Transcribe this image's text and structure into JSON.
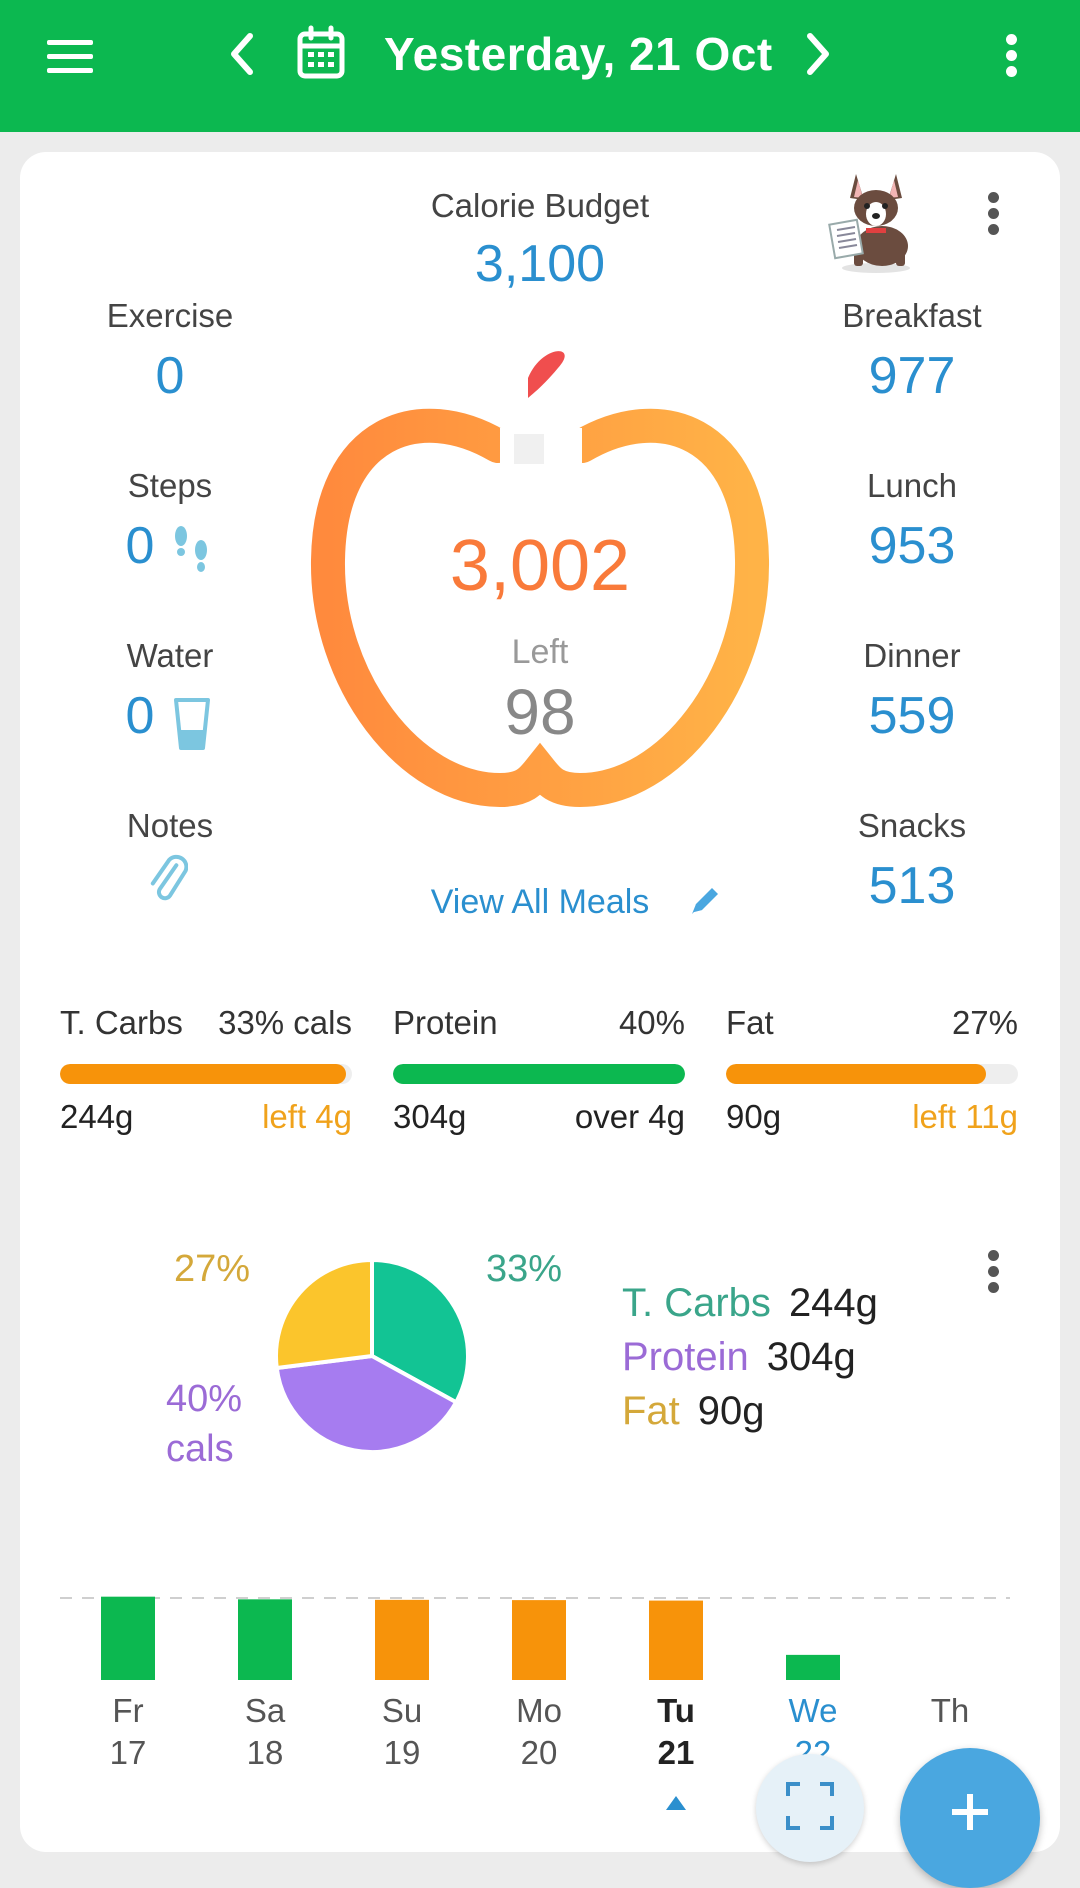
{
  "header": {
    "date_title": "Yesterday, 21 Oct",
    "menu_icon": "hamburger-menu-icon",
    "prev_icon": "chevron-left-icon",
    "next_icon": "chevron-right-icon",
    "calendar_icon": "calendar-icon",
    "more_icon": "more-vertical-icon",
    "bar_color": "#0cb850"
  },
  "summary": {
    "budget_label": "Calorie Budget",
    "budget_value": "3,100",
    "eaten_value": "3,002",
    "left_label": "Left",
    "left_value": "98",
    "view_all_label": "View All Meals",
    "left_stats": [
      {
        "label": "Exercise",
        "value": "0"
      },
      {
        "label": "Steps",
        "value": "0"
      },
      {
        "label": "Water",
        "value": "0"
      },
      {
        "label": "Notes",
        "value": ""
      }
    ],
    "meals": [
      {
        "label": "Breakfast",
        "value": "977"
      },
      {
        "label": "Lunch",
        "value": "953"
      },
      {
        "label": "Dinner",
        "value": "559"
      },
      {
        "label": "Snacks",
        "value": "513"
      }
    ]
  },
  "macros": [
    {
      "name": "T. Carbs",
      "pct": "33% cals",
      "grams": "244g",
      "status": "left 4g",
      "fill": 0.98,
      "color": "#f7930a",
      "status_color": "#f0a21b"
    },
    {
      "name": "Protein",
      "pct": "40%",
      "grams": "304g",
      "status": "over 4g",
      "fill": 1.0,
      "color": "#0cb850",
      "status_color": "#222222"
    },
    {
      "name": "Fat",
      "pct": "27%",
      "grams": "90g",
      "status": "left 11g",
      "fill": 0.89,
      "color": "#f7930a",
      "status_color": "#f0a21b"
    }
  ],
  "pie": {
    "labels": {
      "carbs": "33%",
      "fat": "27%",
      "protein": "40%",
      "protein_unit": "cals"
    },
    "legend": [
      {
        "name": "T. Carbs",
        "grams": "244g",
        "color": "#3aa58a"
      },
      {
        "name": "Protein",
        "grams": "304g",
        "color": "#9b6bd6"
      },
      {
        "name": "Fat",
        "grams": "90g",
        "color": "#d4a83a"
      }
    ],
    "colors": {
      "carbs": "#12c494",
      "protein": "#a67cf0",
      "fat": "#fbc52c"
    }
  },
  "chart_data": {
    "type": "bar",
    "categories": [
      "Fr 17",
      "Sa 18",
      "Su 19",
      "Mo 20",
      "Tu 21",
      "We 22",
      "Th"
    ],
    "values": [
      3150,
      3050,
      3030,
      3020,
      3002,
      950,
      0
    ],
    "colors": [
      "#0cb850",
      "#0cb850",
      "#f7930a",
      "#f7930a",
      "#f7930a",
      "#0cb850",
      "#0cb850"
    ],
    "budget_line": 3100
  },
  "days": [
    {
      "dow": "Fr",
      "date": "17",
      "style": "normal"
    },
    {
      "dow": "Sa",
      "date": "18",
      "style": "normal"
    },
    {
      "dow": "Su",
      "date": "19",
      "style": "normal"
    },
    {
      "dow": "Mo",
      "date": "20",
      "style": "normal"
    },
    {
      "dow": "Tu",
      "date": "21",
      "style": "bold"
    },
    {
      "dow": "We",
      "date": "22",
      "style": "blue"
    },
    {
      "dow": "Th",
      "date": "",
      "style": "normal"
    }
  ]
}
